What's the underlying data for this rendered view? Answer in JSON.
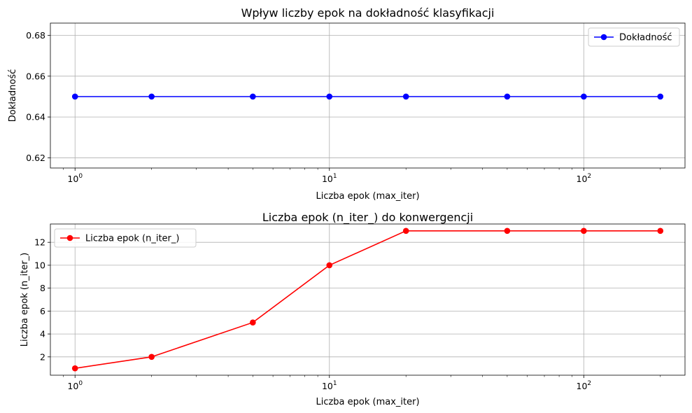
{
  "chart_data": [
    {
      "type": "line",
      "title": "Wpływ liczby epok na dokładność klasyfikacji",
      "xlabel": "Liczba epok (max_iter)",
      "ylabel": "Dokładność",
      "xscale": "log",
      "xlim": [
        0.8,
        250
      ],
      "ylim": [
        0.615,
        0.686
      ],
      "yticks": [
        0.62,
        0.64,
        0.66,
        0.68
      ],
      "ytick_labels": [
        "0.62",
        "0.64",
        "0.66",
        "0.68"
      ],
      "xticks": [
        1,
        10,
        100
      ],
      "xtick_labels": [
        {
          "base": "10",
          "exp": "0"
        },
        {
          "base": "10",
          "exp": "1"
        },
        {
          "base": "10",
          "exp": "2"
        }
      ],
      "grid": true,
      "legend_position": "top-right",
      "series": [
        {
          "name": "Dokładność",
          "color": "#0000ff",
          "marker": "circle",
          "x": [
            1,
            2,
            5,
            10,
            20,
            50,
            100,
            200
          ],
          "y": [
            0.65,
            0.65,
            0.65,
            0.65,
            0.65,
            0.65,
            0.65,
            0.65
          ]
        }
      ]
    },
    {
      "type": "line",
      "title": "Liczba epok (n_iter_) do konwergencji",
      "xlabel": "Liczba epok (max_iter)",
      "ylabel": "Liczba epok (n_iter_)",
      "xscale": "log",
      "xlim": [
        0.8,
        250
      ],
      "ylim": [
        0.4,
        13.6
      ],
      "yticks": [
        2,
        4,
        6,
        8,
        10,
        12
      ],
      "ytick_labels": [
        "2",
        "4",
        "6",
        "8",
        "10",
        "12"
      ],
      "xticks": [
        1,
        10,
        100
      ],
      "xtick_labels": [
        {
          "base": "10",
          "exp": "0"
        },
        {
          "base": "10",
          "exp": "1"
        },
        {
          "base": "10",
          "exp": "2"
        }
      ],
      "grid": true,
      "legend_position": "top-left",
      "series": [
        {
          "name": "Liczba epok (n_iter_)",
          "color": "#ff0000",
          "marker": "circle",
          "x": [
            1,
            2,
            5,
            10,
            20,
            50,
            100,
            200
          ],
          "y": [
            1,
            2,
            5,
            10,
            13,
            13,
            13,
            13
          ]
        }
      ]
    }
  ]
}
